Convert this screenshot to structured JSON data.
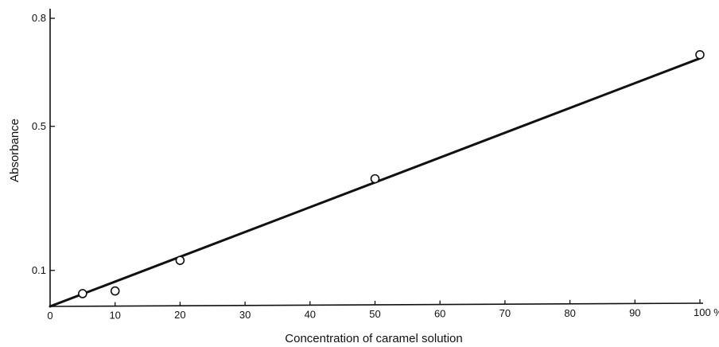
{
  "chart_data": {
    "type": "scatter",
    "title": "",
    "xlabel": "Concentration of caramel solution",
    "ylabel": "Absorbance",
    "xlim": [
      0,
      100
    ],
    "ylim": [
      0,
      0.8
    ],
    "x_ticks": [
      0,
      10,
      20,
      30,
      40,
      50,
      60,
      70,
      80,
      90,
      100
    ],
    "x_tick_labels": [
      "0",
      "10",
      "20",
      "30",
      "40",
      "50",
      "60",
      "70",
      "80",
      "90",
      "100 %"
    ],
    "y_ticks": [
      0.1,
      0.5,
      0.8
    ],
    "y_tick_labels": [
      "0.1",
      "0.5",
      "0.8"
    ],
    "grid": false,
    "series": [
      {
        "marker": "open-circle",
        "x": [
          5,
          10,
          20,
          50,
          100
        ],
        "y": [
          0.035,
          0.042,
          0.126,
          0.35,
          0.69
        ]
      }
    ],
    "fit_line": {
      "x": [
        0,
        100
      ],
      "y": [
        0,
        0.68
      ]
    },
    "colors": {
      "ink": "#111111",
      "background": "#ffffff"
    }
  }
}
